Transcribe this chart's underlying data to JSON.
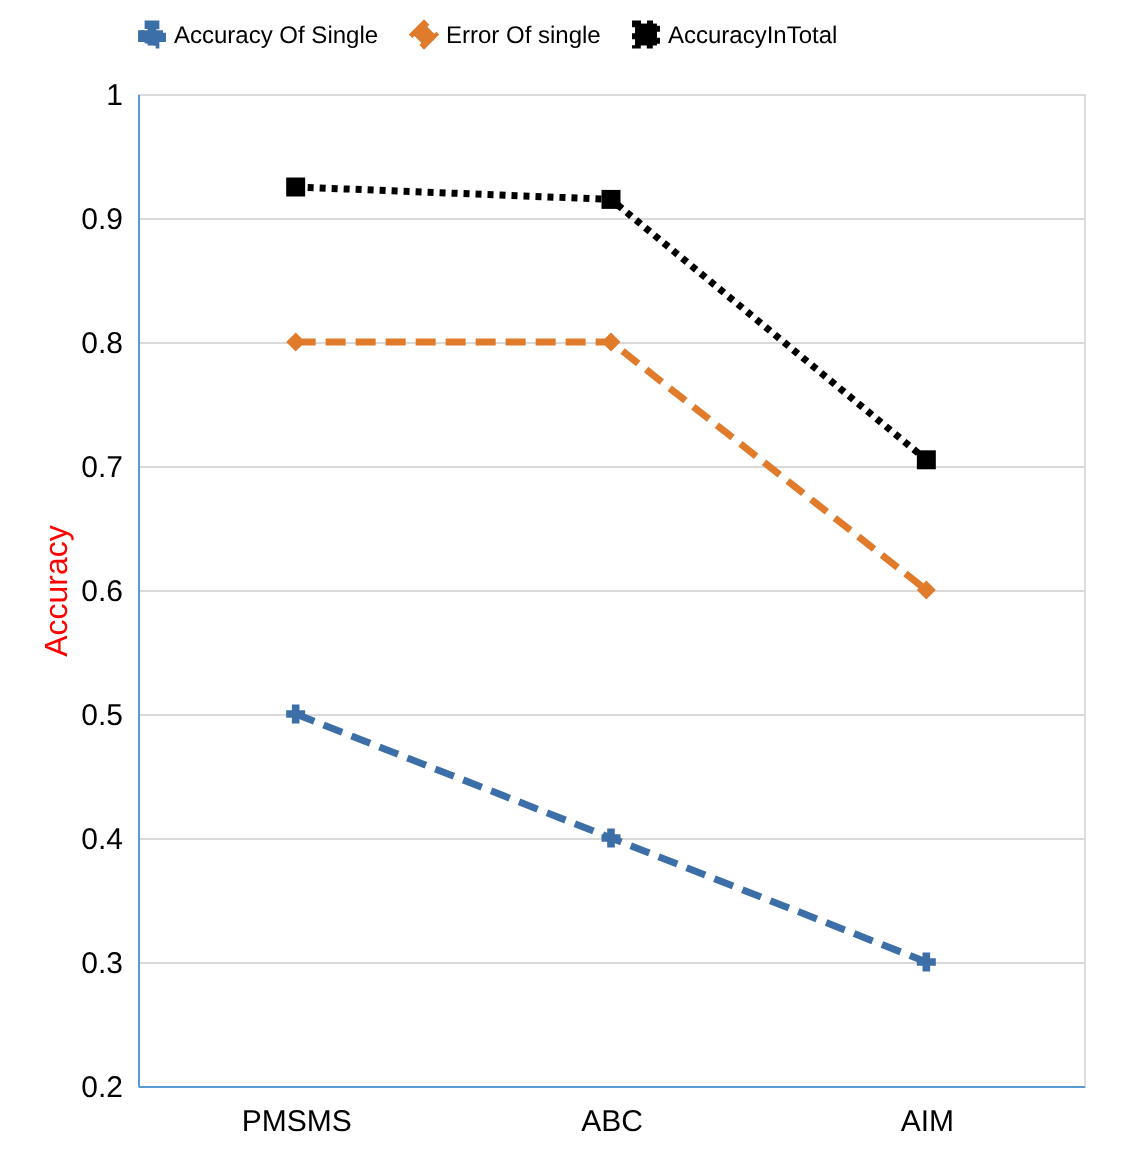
{
  "chart_data": {
    "type": "line",
    "ylabel": "Accuracy",
    "categories": [
      "PMSMS",
      "ABC",
      "AIM"
    ],
    "series": [
      {
        "name": "Accuracy Of Single",
        "color": "#3c6fa8",
        "values": [
          0.5,
          0.4,
          0.3
        ],
        "marker": "cross",
        "line_style": "dashed"
      },
      {
        "name": "Error Of single",
        "color": "#e07b2c",
        "values": [
          0.8,
          0.8,
          0.6
        ],
        "marker": "diamond",
        "line_style": "dashed"
      },
      {
        "name": "AccuracyInTotal",
        "color": "#000000",
        "values": [
          0.925,
          0.915,
          0.705
        ],
        "marker": "square",
        "line_style": "dotted"
      }
    ],
    "ylim": [
      0.2,
      1
    ],
    "yticks": [
      0.2,
      0.3,
      0.4,
      0.5,
      0.6,
      0.7,
      0.8,
      0.9,
      1
    ],
    "grid": "y",
    "legend": "top"
  }
}
